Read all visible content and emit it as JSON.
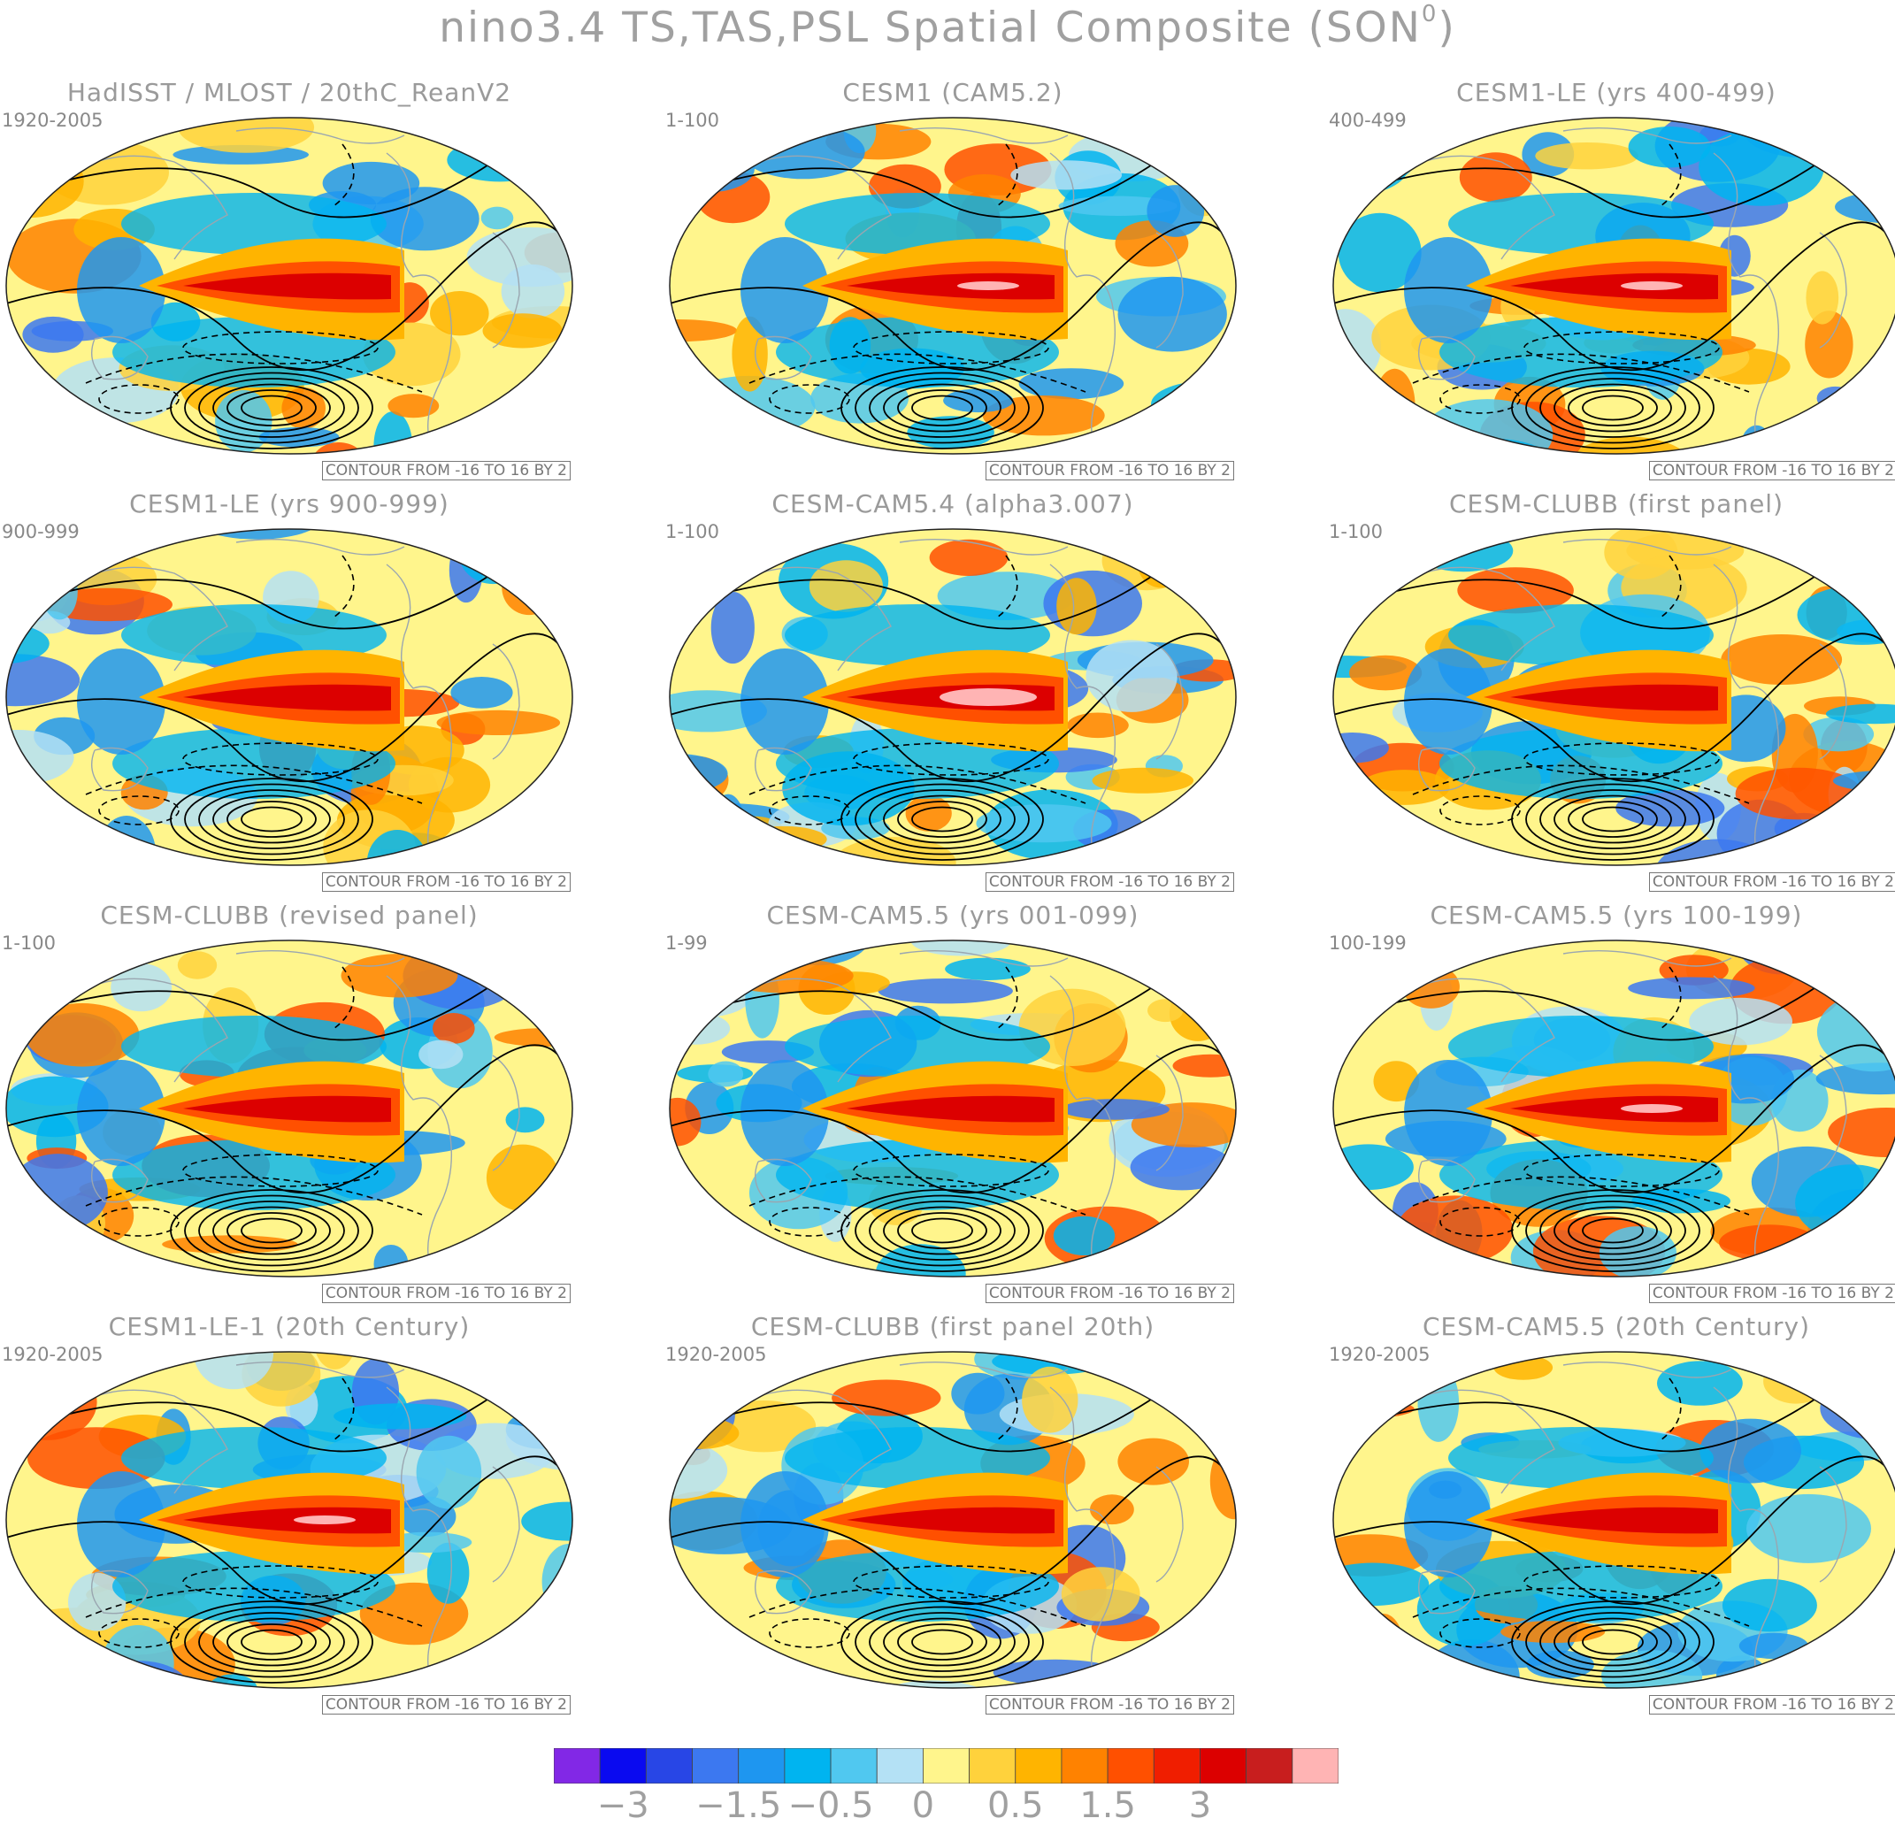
{
  "title": {
    "text": "nino3.4 TS,TAS,PSL Spatial Composite (SON",
    "sup": "0",
    "close": ")"
  },
  "panels": [
    {
      "title": "HadISST / MLOST / 20thC_ReanV2",
      "years": "1920-2005",
      "contour": "CONTOUR FROM -16 TO 16 BY 2"
    },
    {
      "title": "CESM1 (CAM5.2)",
      "years": "1-100",
      "contour": "CONTOUR FROM -16 TO 16 BY 2"
    },
    {
      "title": "CESM1-LE (yrs 400-499)",
      "years": "400-499",
      "contour": "CONTOUR FROM -16 TO 16 BY 2"
    },
    {
      "title": "CESM1-LE (yrs 900-999)",
      "years": "900-999",
      "contour": "CONTOUR FROM -16 TO 16 BY 2"
    },
    {
      "title": "CESM-CAM5.4 (alpha3.007)",
      "years": "1-100",
      "contour": "CONTOUR FROM -16 TO 16 BY 2"
    },
    {
      "title": "CESM-CLUBB (first panel)",
      "years": "1-100",
      "contour": "CONTOUR FROM -16 TO 16 BY 2"
    },
    {
      "title": "CESM-CLUBB (revised panel)",
      "years": "1-100",
      "contour": "CONTOUR FROM -16 TO 16 BY 2"
    },
    {
      "title": "CESM-CAM5.5 (yrs 001-099)",
      "years": "1-99",
      "contour": "CONTOUR FROM -16 TO 16 BY 2"
    },
    {
      "title": "CESM-CAM5.5 (yrs 100-199)",
      "years": "100-199",
      "contour": "CONTOUR FROM -16 TO 16 BY 2"
    },
    {
      "title": "CESM1-LE-1 (20th Century)",
      "years": "1920-2005",
      "contour": "CONTOUR FROM -16 TO 16 BY 2"
    },
    {
      "title": "CESM-CLUBB (first panel 20th)",
      "years": "1920-2005",
      "contour": "CONTOUR FROM -16 TO 16 BY 2"
    },
    {
      "title": "CESM-CAM5.5 (20th Century)",
      "years": "1920-2005",
      "contour": "CONTOUR FROM -16 TO 16 BY 2"
    }
  ],
  "colorbar": {
    "colors": [
      "#8228e6",
      "#0a0af0",
      "#2846e6",
      "#3c78f0",
      "#1e96f0",
      "#00b4f0",
      "#50c8f0",
      "#b4e1f5",
      "#fff58c",
      "#ffd23c",
      "#ffb400",
      "#ff8200",
      "#ff5000",
      "#f01e00",
      "#dc0000",
      "#c81e1e",
      "#ffb4b4"
    ],
    "labels": [
      "-3",
      "-1.5",
      "-0.5",
      "0",
      "0.5",
      "1.5",
      "3"
    ]
  }
}
